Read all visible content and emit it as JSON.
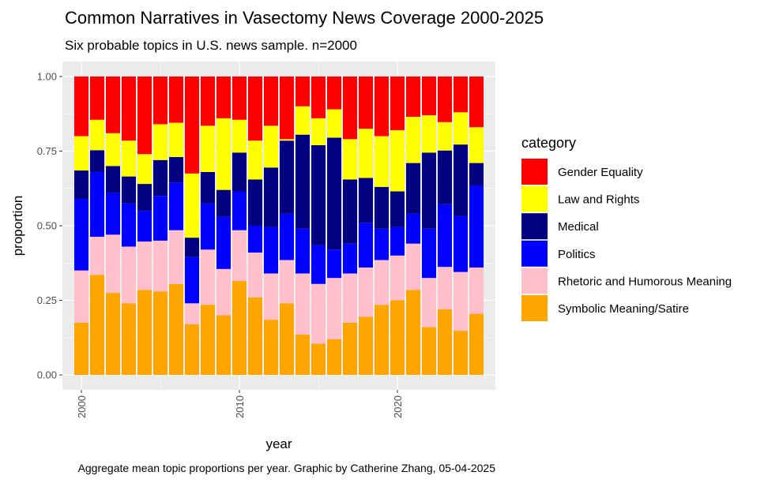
{
  "chart_data": {
    "type": "bar",
    "stacked": true,
    "title": "Common Narratives in Vasectomy News Coverage 2000-2025",
    "subtitle": "Six probable topics in U.S. news sample. n=2000",
    "caption": "Aggregate mean topic proportions per year. Graphic by Catherine Zhang, 05-04-2025",
    "xlabel": "year",
    "ylabel": "proportion",
    "xlim": [
      1998.8,
      2026.2
    ],
    "ylim": [
      -0.05,
      1.05
    ],
    "x_ticks": [
      2000,
      2010,
      2020
    ],
    "x_tick_labels": [
      "2000",
      "2010",
      "2020"
    ],
    "y_ticks": [
      0,
      0.25,
      0.5,
      0.75,
      1.0
    ],
    "y_tick_labels": [
      "0.00",
      "0.25",
      "0.50",
      "0.75",
      "1.00"
    ],
    "grid": true,
    "legend_title": "category",
    "legend_position": "right",
    "x": [
      2000,
      2001,
      2002,
      2003,
      2004,
      2005,
      2006,
      2007,
      2008,
      2009,
      2010,
      2011,
      2012,
      2013,
      2014,
      2015,
      2016,
      2017,
      2018,
      2019,
      2020,
      2021,
      2022,
      2023,
      2024,
      2025
    ],
    "series": [
      {
        "name": "Symbolic Meaning/Satire",
        "color": "#FFA500",
        "values": [
          0.175,
          0.335,
          0.275,
          0.24,
          0.285,
          0.28,
          0.305,
          0.17,
          0.235,
          0.2,
          0.315,
          0.26,
          0.185,
          0.24,
          0.135,
          0.105,
          0.12,
          0.175,
          0.195,
          0.235,
          0.25,
          0.285,
          0.16,
          0.22,
          0.148,
          0.205
        ]
      },
      {
        "name": "Rhetoric and Humorous Meaning",
        "color": "#FFC0CB",
        "values": [
          0.175,
          0.128,
          0.195,
          0.19,
          0.162,
          0.17,
          0.18,
          0.07,
          0.185,
          0.155,
          0.17,
          0.15,
          0.155,
          0.145,
          0.205,
          0.2,
          0.205,
          0.165,
          0.165,
          0.15,
          0.15,
          0.155,
          0.165,
          0.142,
          0.197,
          0.155
        ]
      },
      {
        "name": "Politics",
        "color": "#0000FF",
        "values": [
          0.24,
          0.217,
          0.14,
          0.145,
          0.103,
          0.15,
          0.16,
          0.155,
          0.155,
          0.175,
          0.13,
          0.09,
          0.155,
          0.155,
          0.15,
          0.13,
          0.095,
          0.1,
          0.15,
          0.105,
          0.095,
          0.1,
          0.165,
          0.21,
          0.187,
          0.275
        ]
      },
      {
        "name": "Medical",
        "color": "#000080",
        "values": [
          0.095,
          0.073,
          0.09,
          0.09,
          0.09,
          0.12,
          0.085,
          0.065,
          0.105,
          0.09,
          0.13,
          0.155,
          0.2,
          0.245,
          0.315,
          0.335,
          0.375,
          0.215,
          0.15,
          0.14,
          0.12,
          0.17,
          0.255,
          0.18,
          0.24,
          0.075
        ]
      },
      {
        "name": "Law and Rights",
        "color": "#FFFF00",
        "values": [
          0.115,
          0.102,
          0.11,
          0.12,
          0.1,
          0.12,
          0.115,
          0.215,
          0.155,
          0.24,
          0.11,
          0.13,
          0.14,
          0.005,
          0.095,
          0.09,
          0.095,
          0.135,
          0.165,
          0.17,
          0.205,
          0.155,
          0.125,
          0.095,
          0.108,
          0.12
        ]
      },
      {
        "name": "Gender Equality",
        "color": "#FF0000",
        "values": [
          0.2,
          0.145,
          0.19,
          0.215,
          0.26,
          0.16,
          0.155,
          0.325,
          0.165,
          0.14,
          0.145,
          0.215,
          0.165,
          0.21,
          0.1,
          0.14,
          0.11,
          0.21,
          0.175,
          0.2,
          0.18,
          0.135,
          0.13,
          0.153,
          0.12,
          0.17
        ]
      }
    ],
    "legend_order": [
      "Gender Equality",
      "Law and Rights",
      "Medical",
      "Politics",
      "Rhetoric and Humorous Meaning",
      "Symbolic Meaning/Satire"
    ]
  }
}
